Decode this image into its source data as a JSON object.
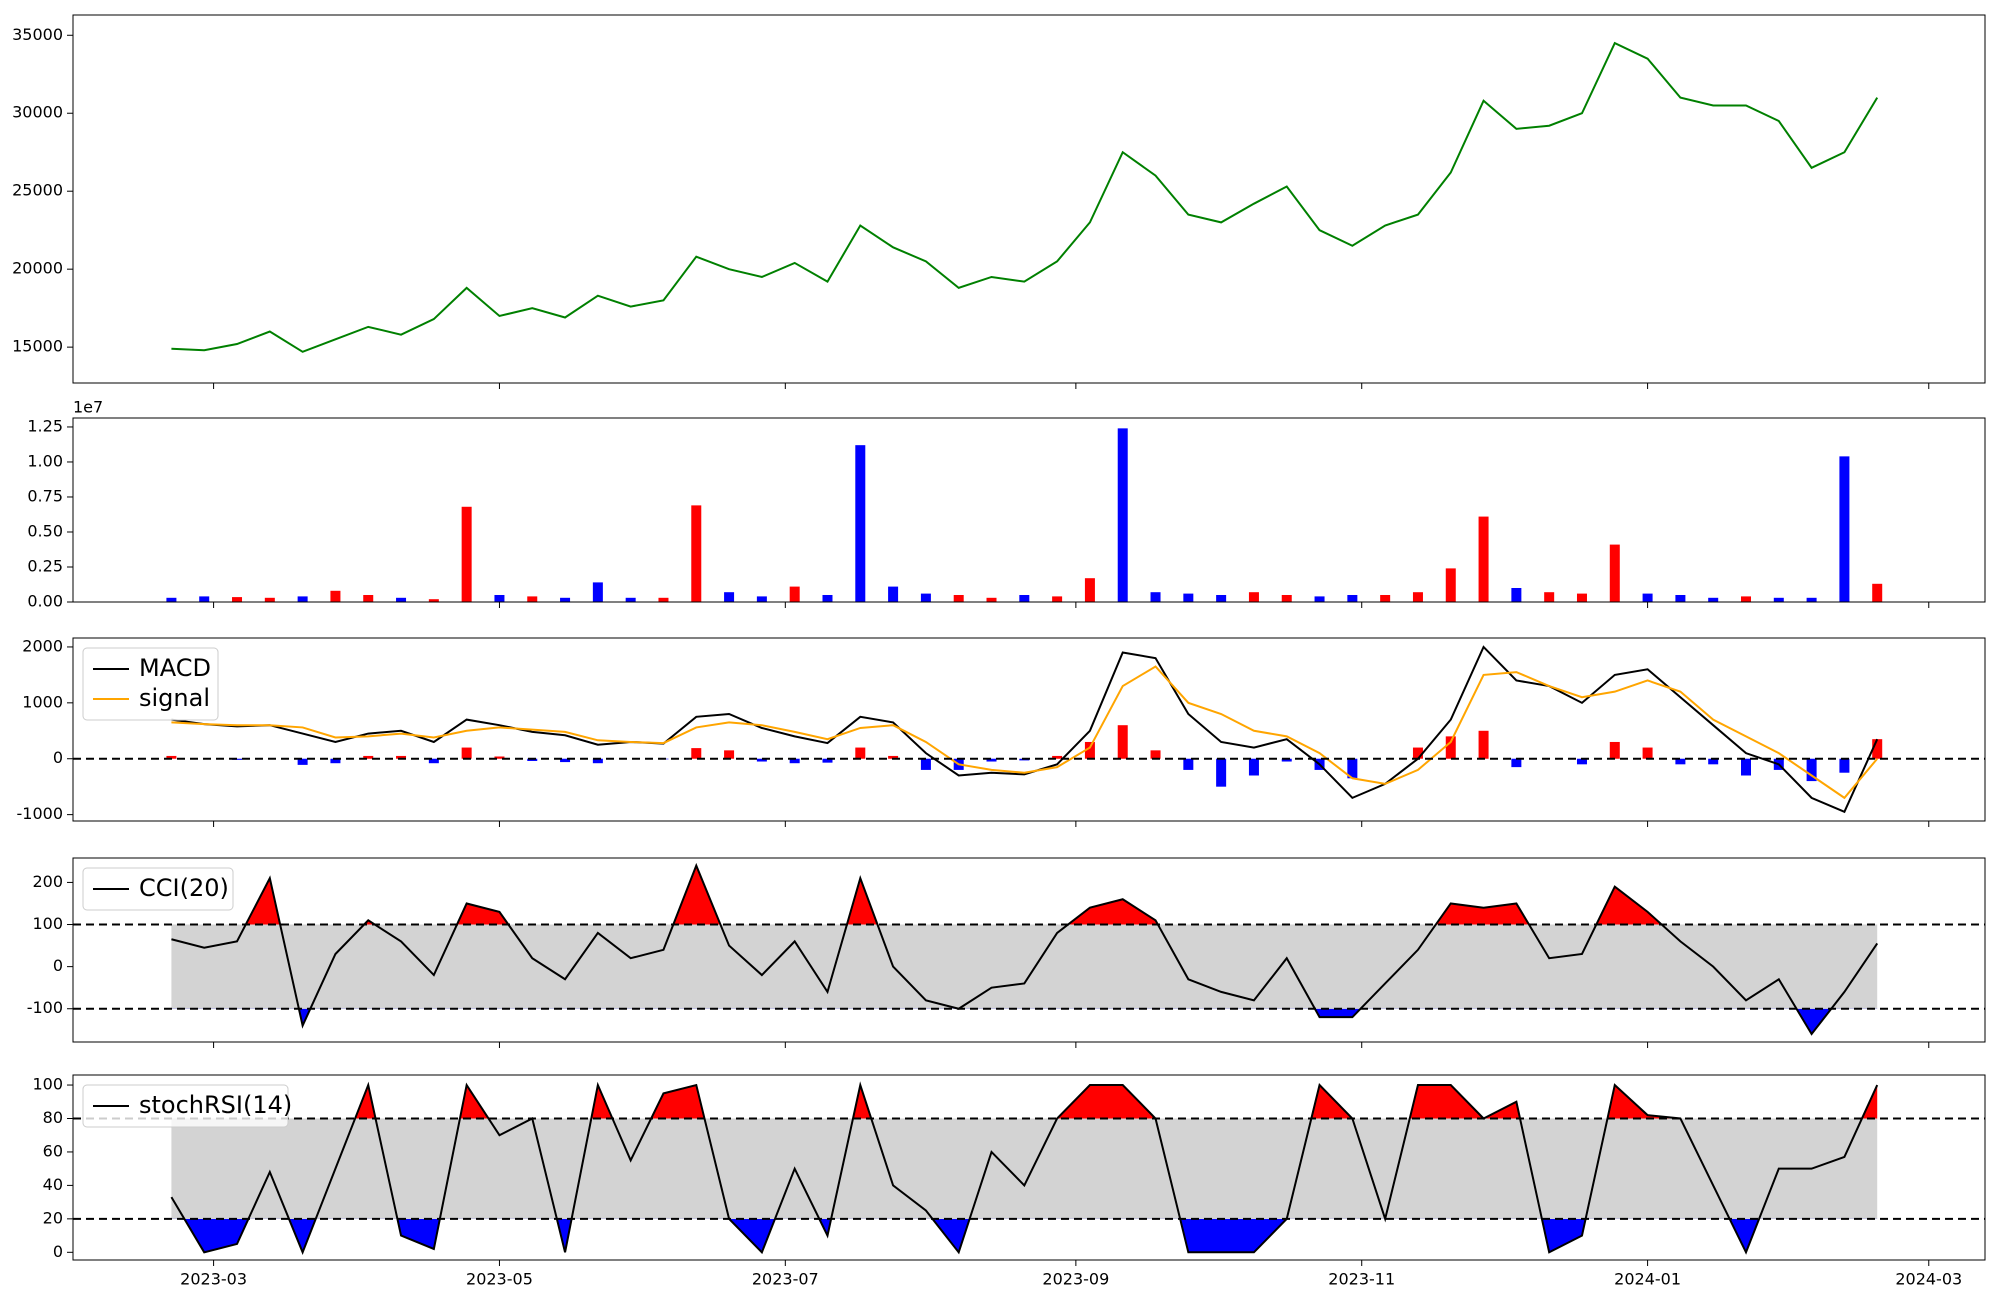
{
  "chart_data": {
    "x": [
      "2023-02-20",
      "2023-02-27",
      "2023-03-06",
      "2023-03-13",
      "2023-03-20",
      "2023-03-27",
      "2023-04-03",
      "2023-04-10",
      "2023-04-17",
      "2023-04-24",
      "2023-05-01",
      "2023-05-08",
      "2023-05-15",
      "2023-05-22",
      "2023-05-29",
      "2023-06-05",
      "2023-06-12",
      "2023-06-19",
      "2023-06-26",
      "2023-07-03",
      "2023-07-10",
      "2023-07-17",
      "2023-07-24",
      "2023-07-31",
      "2023-08-07",
      "2023-08-14",
      "2023-08-21",
      "2023-08-28",
      "2023-09-04",
      "2023-09-11",
      "2023-09-18",
      "2023-09-25",
      "2023-10-02",
      "2023-10-09",
      "2023-10-16",
      "2023-10-23",
      "2023-10-30",
      "2023-11-06",
      "2023-11-13",
      "2023-11-20",
      "2023-11-27",
      "2023-12-04",
      "2023-12-11",
      "2023-12-18",
      "2023-12-25",
      "2024-01-01",
      "2024-01-08",
      "2024-01-15",
      "2024-01-22",
      "2024-01-29",
      "2024-02-05",
      "2024-02-12",
      "2024-02-19"
    ],
    "xlim": [
      "2023-01-30",
      "2024-03-13"
    ],
    "xticks": [
      {
        "value": "2023-03-01",
        "label": "2023-03"
      },
      {
        "value": "2023-05-01",
        "label": "2023-05"
      },
      {
        "value": "2023-07-01",
        "label": "2023-07"
      },
      {
        "value": "2023-09-01",
        "label": "2023-09"
      },
      {
        "value": "2023-11-01",
        "label": "2023-11"
      },
      {
        "value": "2024-01-01",
        "label": "2024-01"
      },
      {
        "value": "2024-03-01",
        "label": "2024-03"
      }
    ],
    "panels": [
      {
        "type": "line",
        "ylim": [
          12700,
          36300
        ],
        "yticks": [
          15000,
          20000,
          25000,
          30000,
          35000
        ],
        "series": [
          {
            "color": "green",
            "values": [
              14900,
              14800,
              15200,
              16000,
              14700,
              15500,
              16300,
              15800,
              16800,
              18800,
              17000,
              17500,
              16900,
              18300,
              17600,
              18000,
              20800,
              20000,
              19500,
              20400,
              19200,
              22800,
              21400,
              20500,
              18800,
              19500,
              19200,
              20500,
              23000,
              27500,
              26000,
              23500,
              23000,
              24200,
              25300,
              22500,
              21500,
              22800,
              23500,
              26200,
              30800,
              29000,
              29200,
              30000,
              34500,
              33500,
              31000,
              30500,
              30500,
              29500,
              26500,
              27500,
              31000
            ]
          }
        ]
      },
      {
        "type": "bar",
        "ylim": [
          0,
          13140000
        ],
        "offset_label": "1e7",
        "yticks": [
          {
            "value": 0,
            "label": "0.00"
          },
          {
            "value": 2500000,
            "label": "0.25"
          },
          {
            "value": 5000000,
            "label": "0.50"
          },
          {
            "value": 7500000,
            "label": "0.75"
          },
          {
            "value": 10000000,
            "label": "1.00"
          },
          {
            "value": 12500000,
            "label": "1.25"
          }
        ],
        "values": [
          300000,
          400000,
          350000,
          300000,
          400000,
          800000,
          500000,
          300000,
          200000,
          6800000,
          500000,
          400000,
          300000,
          1400000,
          300000,
          300000,
          6900000,
          700000,
          400000,
          1100000,
          500000,
          11200000,
          1100000,
          600000,
          500000,
          300000,
          500000,
          400000,
          1700000,
          12400000,
          700000,
          600000,
          500000,
          700000,
          500000,
          400000,
          500000,
          500000,
          700000,
          2400000,
          6100000,
          1000000,
          700000,
          600000,
          4100000,
          600000,
          500000,
          300000,
          400000,
          300000,
          300000,
          10400000,
          1300000
        ],
        "colors": [
          "blue",
          "blue",
          "red",
          "red",
          "blue",
          "red",
          "red",
          "blue",
          "red",
          "red",
          "blue",
          "red",
          "blue",
          "blue",
          "blue",
          "red",
          "red",
          "blue",
          "blue",
          "red",
          "blue",
          "blue",
          "blue",
          "blue",
          "red",
          "red",
          "blue",
          "red",
          "red",
          "blue",
          "blue",
          "blue",
          "blue",
          "red",
          "red",
          "blue",
          "blue",
          "red",
          "red",
          "red",
          "red",
          "blue",
          "red",
          "red",
          "red",
          "blue",
          "blue",
          "blue",
          "red",
          "blue",
          "blue",
          "blue",
          "red"
        ]
      },
      {
        "type": "macd",
        "ylim": [
          -1114,
          2160
        ],
        "yticks": [
          -1000,
          0,
          1000,
          2000
        ],
        "hline": 0,
        "legend": "upper left",
        "series": [
          {
            "name": "MACD",
            "color": "black",
            "values": [
              700,
              620,
              580,
              600,
              450,
              300,
              450,
              500,
              300,
              700,
              600,
              480,
              420,
              250,
              300,
              270,
              750,
              800,
              550,
              400,
              280,
              750,
              650,
              100,
              -300,
              -250,
              -280,
              -100,
              500,
              1900,
              1800,
              800,
              300,
              200,
              350,
              -100,
              -700,
              -450,
              0,
              700,
              2000,
              1400,
              1300,
              1000,
              1500,
              1600,
              1100,
              600,
              100,
              -100,
              -700,
              -950,
              350
            ]
          },
          {
            "name": "signal",
            "color": "orange",
            "values": [
              650,
              620,
              600,
              600,
              560,
              380,
              400,
              450,
              380,
              500,
              560,
              520,
              480,
              330,
              300,
              280,
              560,
              650,
              600,
              480,
              350,
              550,
              600,
              300,
              -100,
              -200,
              -250,
              -150,
              200,
              1300,
              1650,
              1000,
              800,
              500,
              400,
              100,
              -350,
              -450,
              -200,
              300,
              1500,
              1550,
              1300,
              1100,
              1200,
              1400,
              1200,
              700,
              400,
              100,
              -300,
              -700,
              0
            ]
          }
        ],
        "hist": {
          "positive_color": "red",
          "negative_color": "blue",
          "values": [
            50,
            0,
            -20,
            0,
            -110,
            -80,
            50,
            50,
            -80,
            200,
            40,
            -40,
            -60,
            -80,
            0,
            -10,
            190,
            150,
            -50,
            -80,
            -70,
            200,
            50,
            -200,
            -200,
            -50,
            -30,
            50,
            300,
            600,
            150,
            -200,
            -500,
            -300,
            -50,
            -200,
            -350,
            0,
            200,
            400,
            500,
            -150,
            0,
            -100,
            300,
            200,
            -100,
            -100,
            -300,
            -200,
            -400,
            -250,
            350
          ]
        }
      },
      {
        "type": "band",
        "ylim": [
          -179,
          258
        ],
        "yticks": [
          -100,
          0,
          100,
          200
        ],
        "levels": [
          100,
          -100
        ],
        "legend": "upper left",
        "fill_color": "lightgray",
        "upper_color": "red",
        "lower_color": "blue",
        "series": [
          {
            "name": "CCI(20)",
            "color": "black",
            "values": [
              65,
              45,
              60,
              210,
              -140,
              30,
              110,
              60,
              -20,
              150,
              130,
              20,
              -30,
              80,
              20,
              40,
              240,
              50,
              -20,
              60,
              -60,
              210,
              0,
              -80,
              -100,
              -50,
              -40,
              80,
              140,
              160,
              110,
              -30,
              -60,
              -80,
              20,
              -120,
              -120,
              -40,
              40,
              150,
              140,
              150,
              20,
              30,
              190,
              130,
              60,
              0,
              -80,
              -30,
              -160,
              -60,
              55
            ]
          }
        ]
      },
      {
        "type": "band",
        "ylim": [
          -4.6,
          106
        ],
        "yticks": [
          0,
          20,
          40,
          60,
          80,
          100
        ],
        "levels": [
          80,
          20
        ],
        "legend": "upper left",
        "fill_color": "lightgray",
        "upper_color": "red",
        "lower_color": "blue",
        "series": [
          {
            "name": "stochRSI(14)",
            "color": "black",
            "values": [
              33,
              0,
              5,
              48,
              0,
              50,
              100,
              10,
              2,
              100,
              70,
              80,
              0,
              100,
              55,
              95,
              100,
              20,
              0,
              50,
              10,
              100,
              40,
              25,
              0,
              60,
              40,
              80,
              100,
              100,
              80,
              0,
              0,
              0,
              20,
              100,
              80,
              20,
              100,
              100,
              80,
              90,
              0,
              10,
              100,
              82,
              80,
              40,
              0,
              50,
              50,
              57,
              100
            ]
          }
        ]
      }
    ]
  }
}
